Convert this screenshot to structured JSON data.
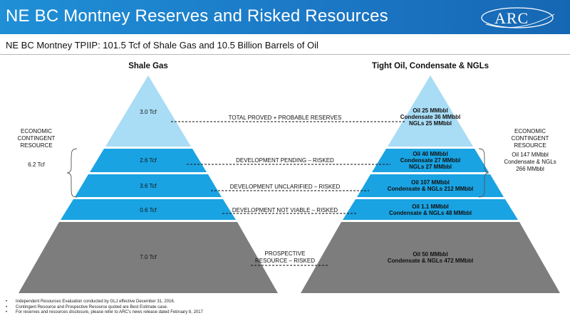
{
  "header": {
    "title": "NE BC Montney Reserves and Risked Resources",
    "logo_text": "ARC",
    "colors": {
      "background": "#1b76c4",
      "text": "#ffffff"
    }
  },
  "subtitle": "NE BC Montney TPIIP: 101.5 Tcf of Shale Gas and 10.5 Billion Barrels of Oil",
  "colors": {
    "top_tier": "#a9dcf5",
    "mid_tier": "#1aa3e2",
    "bottom_tier": "#7d7d7d"
  },
  "left_pyramid": {
    "title": "Shale Gas",
    "tiers": [
      {
        "value": "3.0 Tcf"
      },
      {
        "value": "2.6 Tcf"
      },
      {
        "value": "3.6 Tcf"
      },
      {
        "value": "0.6 Tcf"
      },
      {
        "value": "7.0 Tcf"
      }
    ]
  },
  "right_pyramid": {
    "title": "Tight Oil, Condensate & NGLs",
    "tiers": [
      {
        "lines": [
          "Oil 25 MMbbl",
          "Condensate 36 MMbbl",
          "NGLs 25 MMbbl"
        ]
      },
      {
        "lines": [
          "Oil 40 MMbbl",
          "Condensate 27 MMbbl",
          "NGLs 27 MMbbl"
        ]
      },
      {
        "lines": [
          "Oil 107 MMbbl",
          "Condensate & NGLs 212 MMbbl"
        ]
      },
      {
        "lines": [
          "Oil 1.1 MMbbl",
          "Condensate & NGLs 48 MMbbl"
        ]
      },
      {
        "lines": [
          "Oil 50 MMbbl",
          "Condensate & NGLs 472 MMbbl"
        ]
      }
    ]
  },
  "categories": [
    {
      "lines": [
        "TOTAL PROVED + PROBABLE RESERVES"
      ]
    },
    {
      "lines": [
        "DEVELOPMENT PENDING – RISKED"
      ]
    },
    {
      "lines": [
        "DEVELOPMENT UNCLARIFIED – RISKED"
      ]
    },
    {
      "lines": [
        "DEVELOPMENT NOT VIABLE – RISKED"
      ]
    },
    {
      "lines": [
        "PROSPECTIVE",
        "RESOURCE – RISKED"
      ]
    }
  ],
  "left_contingent": {
    "label_lines": [
      "ECONOMIC",
      "CONTINGENT",
      "RESOURCE"
    ],
    "total": "6.2 Tcf"
  },
  "right_contingent": {
    "label_lines": [
      "ECONOMIC",
      "CONTINGENT",
      "RESOURCE"
    ],
    "total_lines": [
      "Oil 147 MMbbl",
      "Condensate & NGLs",
      "266 MMbbl"
    ]
  },
  "footnotes": [
    "Independent Resources Evaluation conducted by GLJ effective December 31, 2016.",
    "Contingent Resource and Prospective Resource quoted are Best Estimate case.",
    "For reserves and resources disclosure, please refer to ARC's news release dated February 8, 2017"
  ]
}
